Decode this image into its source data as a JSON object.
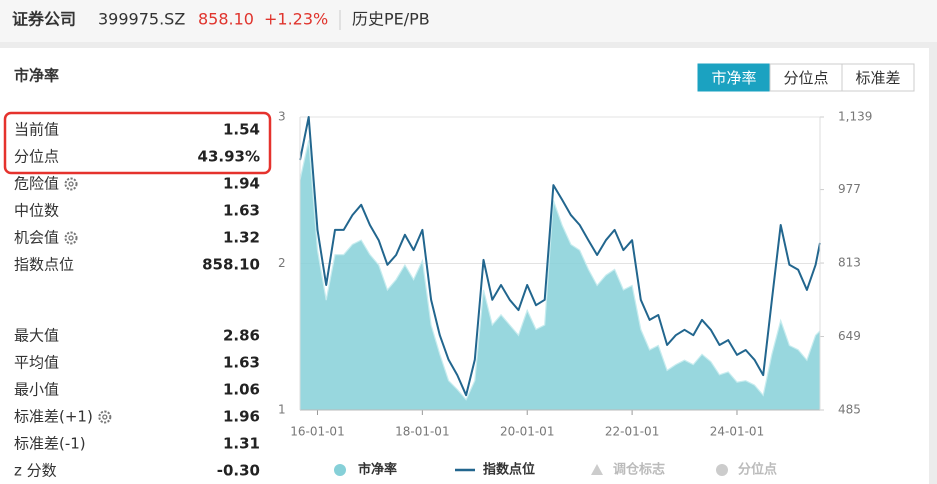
{
  "header": {
    "title": "证券公司",
    "code": "399975.SZ",
    "price": "858.10",
    "change": "+1.23%",
    "section": "历史PE/PB"
  },
  "panel": {
    "title": "市净率",
    "tabs": [
      "市净率",
      "分位点",
      "标准差"
    ],
    "active_tab": 0
  },
  "stats": {
    "current": [
      {
        "label": "当前值",
        "value": "1.54"
      },
      {
        "label": "分位点",
        "value": "43.93%"
      },
      {
        "label": "危险值",
        "value": "1.94",
        "icon": "gear"
      },
      {
        "label": "中位数",
        "value": "1.63"
      },
      {
        "label": "机会值",
        "value": "1.32",
        "icon": "gear"
      },
      {
        "label": "指数点位",
        "value": "858.10"
      }
    ],
    "range": [
      {
        "label": "最大值",
        "value": "2.86"
      },
      {
        "label": "平均值",
        "value": "1.63"
      },
      {
        "label": "最小值",
        "value": "1.06"
      },
      {
        "label": "标准差(+1)",
        "value": "1.96",
        "icon": "gear"
      },
      {
        "label": "标准差(-1)",
        "value": "1.31"
      },
      {
        "label": "z 分数",
        "value": "-0.30"
      }
    ]
  },
  "chart_data": {
    "type": "line",
    "x": [
      "15-09-01",
      "15-11-01",
      "16-01-01",
      "16-03-01",
      "16-05-01",
      "16-07-01",
      "16-09-01",
      "16-11-01",
      "17-01-01",
      "17-03-01",
      "17-05-01",
      "17-07-01",
      "17-09-01",
      "17-11-01",
      "18-01-01",
      "18-03-01",
      "18-05-01",
      "18-07-01",
      "18-09-01",
      "18-11-01",
      "19-01-01",
      "19-03-01",
      "19-05-01",
      "19-07-01",
      "19-09-01",
      "19-11-01",
      "20-01-01",
      "20-03-01",
      "20-05-01",
      "20-07-01",
      "20-09-01",
      "20-11-01",
      "21-01-01",
      "21-03-01",
      "21-05-01",
      "21-07-01",
      "21-09-01",
      "21-11-01",
      "22-01-01",
      "22-03-01",
      "22-05-01",
      "22-07-01",
      "22-09-01",
      "22-11-01",
      "23-01-01",
      "23-03-01",
      "23-05-01",
      "23-07-01",
      "23-09-01",
      "23-11-01",
      "24-01-01",
      "24-03-01",
      "24-05-01",
      "24-07-01",
      "24-09-01",
      "24-11-01",
      "25-01-01",
      "25-03-01",
      "25-05-01",
      "25-07-01",
      "25-08-01"
    ],
    "xlim": [
      "15-09-01",
      "25-08-01"
    ],
    "xticks": [
      "16-01-01",
      "18-01-01",
      "20-01-01",
      "22-01-01",
      "24-01-01"
    ],
    "series": [
      {
        "name": "市净率",
        "type": "area",
        "color": "#86d0d8",
        "values": [
          2.57,
          2.84,
          2.09,
          1.75,
          2.06,
          2.06,
          2.13,
          2.16,
          2.06,
          1.99,
          1.82,
          1.89,
          1.99,
          1.89,
          2.02,
          1.58,
          1.38,
          1.2,
          1.14,
          1.07,
          1.2,
          1.82,
          1.58,
          1.65,
          1.58,
          1.51,
          1.68,
          1.55,
          1.58,
          2.43,
          2.26,
          2.13,
          2.09,
          1.96,
          1.85,
          1.92,
          1.96,
          1.82,
          1.85,
          1.55,
          1.41,
          1.44,
          1.27,
          1.31,
          1.34,
          1.31,
          1.38,
          1.33,
          1.24,
          1.26,
          1.19,
          1.2,
          1.17,
          1.1,
          1.38,
          1.61,
          1.44,
          1.41,
          1.34,
          1.51,
          1.54
        ]
      },
      {
        "name": "指数点位",
        "type": "line",
        "color": "#22668e",
        "axis": "y2",
        "values": [
          1043,
          1139,
          887,
          764,
          887,
          887,
          920,
          943,
          898,
          864,
          809,
          831,
          876,
          842,
          887,
          731,
          652,
          597,
          563,
          518,
          597,
          820,
          731,
          764,
          731,
          708,
          764,
          719,
          731,
          987,
          954,
          920,
          898,
          864,
          831,
          864,
          887,
          842,
          864,
          731,
          686,
          697,
          630,
          652,
          664,
          652,
          686,
          664,
          630,
          641,
          608,
          619,
          597,
          563,
          731,
          898,
          809,
          798,
          753,
          809,
          858
        ]
      }
    ],
    "ylim": [
      1,
      3
    ],
    "yticks": [
      1,
      2,
      3
    ],
    "y2lim": [
      485,
      1139
    ],
    "y2ticks": [
      485,
      649,
      813,
      977,
      {
        "value": 1139,
        "label": "1,139"
      }
    ],
    "grid": true,
    "inactive_legend": [
      {
        "name": "调仓标志",
        "marker": "triangle"
      },
      {
        "name": "分位点",
        "marker": "circle"
      }
    ]
  }
}
